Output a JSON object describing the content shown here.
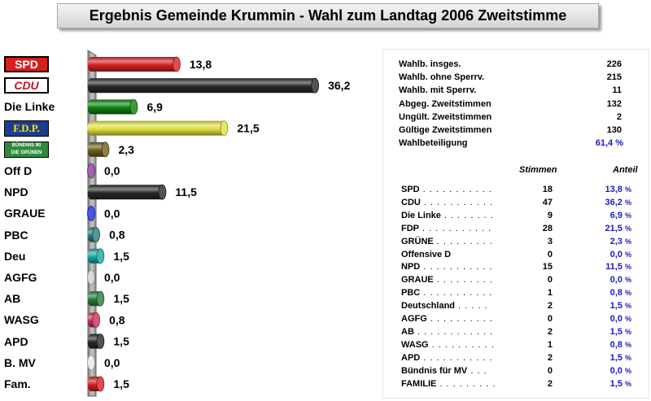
{
  "title": "Ergebnis Gemeinde Krummin -  Wahl zum Landtag 2006 Zweitstimme",
  "chart_data": {
    "type": "bar",
    "orientation": "horizontal",
    "title": "Ergebnis Gemeinde Krummin -  Wahl zum Landtag 2006 Zweitstimme",
    "categories": [
      "SPD",
      "CDU",
      "Die Linke",
      "F.D.P.",
      "BÜNDNIS 90 DIE GRÜNEN",
      "Off D",
      "NPD",
      "GRAUE",
      "PBC",
      "Deu",
      "AGFG",
      "AB",
      "WASG",
      "APD",
      "B. MV",
      "Fam."
    ],
    "values": [
      13.8,
      36.2,
      6.9,
      21.5,
      2.3,
      0.0,
      11.5,
      0.0,
      0.8,
      1.5,
      0.0,
      1.5,
      0.8,
      1.5,
      0.0,
      1.5
    ],
    "value_labels": [
      "13,8",
      "36,2",
      "6,9",
      "21,5",
      "2,3",
      "0,0",
      "11,5",
      "0,0",
      "0,8",
      "1,5",
      "0,0",
      "1,5",
      "0,8",
      "1,5",
      "0,0",
      "1,5"
    ],
    "colors": [
      "#d42020",
      "#282828",
      "#0d800d",
      "#e0e040",
      "#6e5e1e",
      "#8a3d9a",
      "#282828",
      "#1a2ae0",
      "#2a7a7a",
      "#18a8a0",
      "#d0d0d0",
      "#2a7a3a",
      "#c8305a",
      "#282828",
      "#e8e8e8",
      "#d42020"
    ],
    "xlim": [
      0,
      40
    ],
    "grid": false,
    "legend": "none"
  },
  "label_logos": {
    "spd": "SPD",
    "cdu": "CDU",
    "fdp": "F.D.P.",
    "gruene_line1": "BÜNDNIS 90",
    "gruene_line2": "DIE GRÜNEN"
  },
  "stats": [
    {
      "label": "Wahlb. insges.",
      "value": "226"
    },
    {
      "label": "Wahlb. ohne Sperrv.",
      "value": "215"
    },
    {
      "label": "Wahlb. mit Sperrv.",
      "value": "11"
    },
    {
      "label": "Abgeg. Zweitstimmen",
      "value": "132"
    },
    {
      "label": "Ungült. Zweitstimmen",
      "value": "2"
    },
    {
      "label": "Gültige Zweitstimmen",
      "value": "130"
    },
    {
      "label": "Wahlbeteiligung",
      "value": "61,4 %"
    }
  ],
  "results_header": {
    "stimmen": "Stimmen",
    "anteil": "Anteil"
  },
  "results": [
    {
      "name": "SPD",
      "dots": ". . . . . . . . . . .",
      "stimmen": "18",
      "anteil": "13,8",
      "pct": "%"
    },
    {
      "name": "CDU",
      "dots": ". . . . . . . . . . .",
      "stimmen": "47",
      "anteil": "36,2",
      "pct": "%"
    },
    {
      "name": "Die Linke",
      "dots": ". . . . . . . .",
      "stimmen": "9",
      "anteil": "6,9",
      "pct": "%"
    },
    {
      "name": "FDP",
      "dots": ". . . . . . . . . . .",
      "stimmen": "28",
      "anteil": "21,5",
      "pct": "%"
    },
    {
      "name": "GRÜNE",
      "dots": ". . . . . . . . .",
      "stimmen": "3",
      "anteil": "2,3",
      "pct": "%"
    },
    {
      "name": "Offensive D",
      "dots": "",
      "stimmen": "0",
      "anteil": "0,0",
      "pct": "%"
    },
    {
      "name": "NPD",
      "dots": ". . . . . . . . . . .",
      "stimmen": "15",
      "anteil": "11,5",
      "pct": "%"
    },
    {
      "name": "GRAUE",
      "dots": ". . . . . . . . .",
      "stimmen": "0",
      "anteil": "0,0",
      "pct": "%"
    },
    {
      "name": "PBC",
      "dots": ". . . . . . . . . . .",
      "stimmen": "1",
      "anteil": "0,8",
      "pct": "%"
    },
    {
      "name": "Deutschland",
      "dots": ". . . . .",
      "stimmen": "2",
      "anteil": "1,5",
      "pct": "%"
    },
    {
      "name": "AGFG",
      "dots": ". . . . . . . . . .",
      "stimmen": "0",
      "anteil": "0,0",
      "pct": "%"
    },
    {
      "name": "AB",
      "dots": ". . . . . . . . . . . .",
      "stimmen": "2",
      "anteil": "1,5",
      "pct": "%"
    },
    {
      "name": "WASG",
      "dots": ". . . . . . . . . .",
      "stimmen": "1",
      "anteil": "0,8",
      "pct": "%"
    },
    {
      "name": "APD",
      "dots": ". . . . . . . . . . .",
      "stimmen": "2",
      "anteil": "1,5",
      "pct": "%"
    },
    {
      "name": "Bündnis für MV",
      "dots": ". . .",
      "stimmen": "0",
      "anteil": "0,0",
      "pct": "%"
    },
    {
      "name": "FAMILIE",
      "dots": ". . . . . . . . .",
      "stimmen": "2",
      "anteil": "1,5",
      "pct": "%"
    }
  ]
}
